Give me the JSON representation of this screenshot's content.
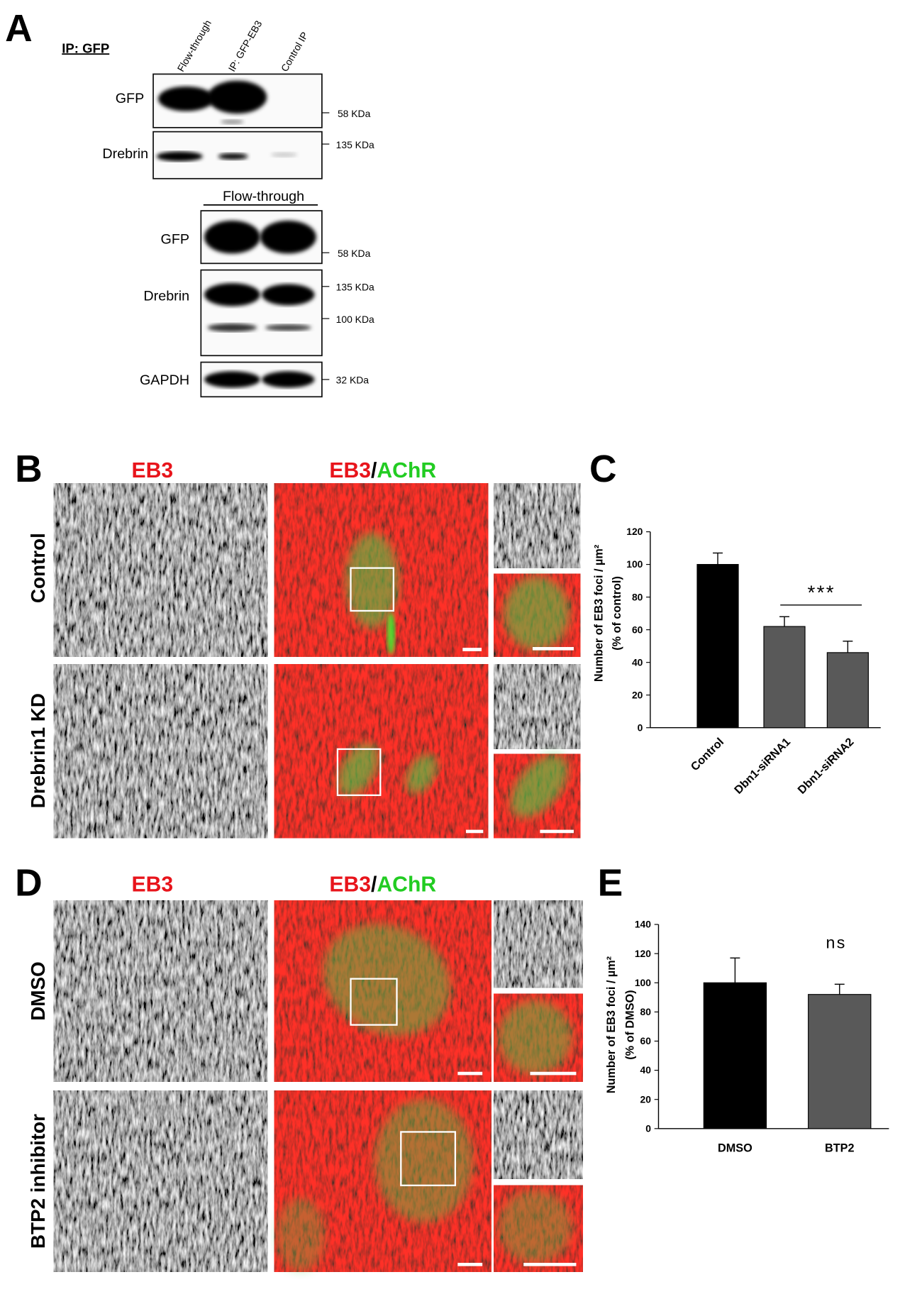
{
  "figure": {
    "panel_labels": [
      "A",
      "B",
      "C",
      "D",
      "E"
    ],
    "blot": {
      "ip_label": "IP: GFP",
      "lanes": [
        "Flow-through",
        "IP: GFP-EB3",
        "Control IP"
      ],
      "rows": [
        "GFP",
        "Drebrin"
      ],
      "markers": [
        "58 KDa",
        "135 KDa"
      ],
      "flow_through": "Flow-through",
      "rows2": [
        "GFP",
        "Drebrin",
        "GAPDH"
      ],
      "markers2": [
        "58 KDa",
        "135 KDa",
        "100 KDa",
        "32 KDa"
      ]
    },
    "panel_b": {
      "headers": [
        "EB3",
        "EB3",
        "/",
        "AChR"
      ],
      "rows": [
        "Control",
        "Drebrin1 KD"
      ]
    },
    "panel_d": {
      "headers": [
        "EB3",
        "EB3",
        "/",
        "AChR"
      ],
      "rows": [
        "DMSO",
        "BTP2 inhibitor"
      ]
    }
  },
  "chart_data": [
    {
      "type": "bar",
      "y_label": [
        "Number of EB3 foci / µm²",
        "(% of control)"
      ],
      "categories": [
        "Control",
        "Dbn1-siRNA1",
        "Dbn1-siRNA2"
      ],
      "values": [
        100,
        62,
        46
      ],
      "errors": [
        7,
        6,
        7
      ],
      "colors": [
        "#000000",
        "#595959",
        "#595959"
      ],
      "ylim": [
        0,
        120
      ],
      "yticks": [
        0,
        20,
        40,
        60,
        80,
        100,
        120
      ],
      "annotation": "***"
    },
    {
      "type": "bar",
      "y_label": [
        "Number of EB3 foci / µm²",
        "(% of DMSO)"
      ],
      "categories": [
        "DMSO",
        "BTP2"
      ],
      "values": [
        100,
        92
      ],
      "errors": [
        17,
        7
      ],
      "colors": [
        "#000000",
        "#595959"
      ],
      "ylim": [
        0,
        140
      ],
      "yticks": [
        0,
        20,
        40,
        60,
        80,
        100,
        120,
        140
      ],
      "annotation": "ns"
    }
  ]
}
